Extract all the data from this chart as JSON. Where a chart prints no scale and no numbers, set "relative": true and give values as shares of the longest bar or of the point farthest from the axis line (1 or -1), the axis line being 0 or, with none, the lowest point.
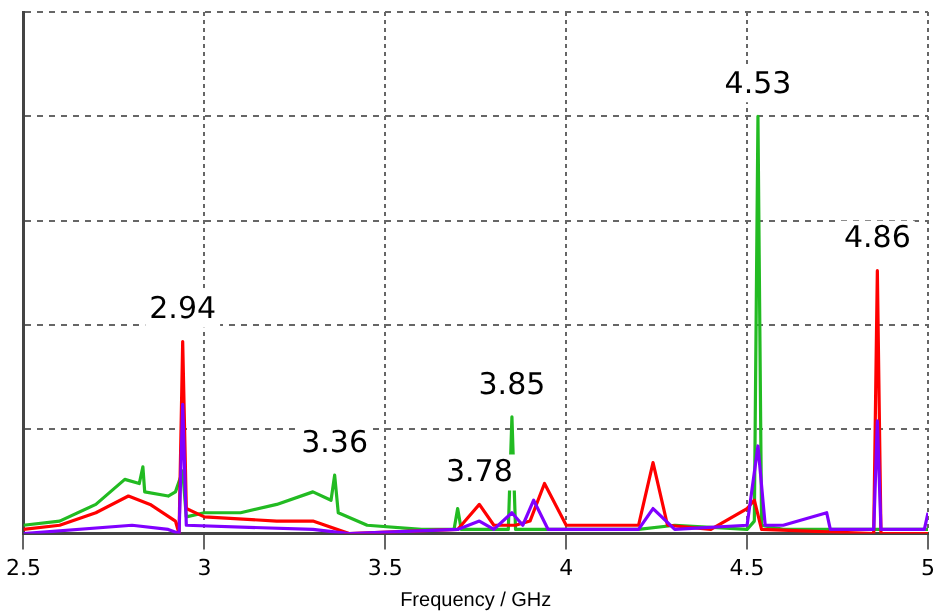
{
  "chart_data": {
    "type": "line",
    "xlabel": "Frequency / GHz",
    "xlim": [
      2.5,
      5
    ],
    "xticks": [
      2.5,
      3,
      3.5,
      4,
      4.5,
      5
    ],
    "relative": true,
    "grid": true,
    "legend": false,
    "marker": "none",
    "line_style": "solid",
    "series": [
      {
        "color": "#22bb22",
        "x": [
          2.5,
          2.6,
          2.7,
          2.78,
          2.82,
          2.83,
          2.835,
          2.9,
          2.92,
          2.94,
          2.95,
          3.0,
          3.1,
          3.2,
          3.3,
          3.35,
          3.36,
          3.37,
          3.45,
          3.6,
          3.69,
          3.7,
          3.71,
          3.84,
          3.85,
          3.86,
          4.0,
          4.2,
          4.3,
          4.5,
          4.52,
          4.53,
          4.54,
          4.6,
          5.0
        ],
        "values": [
          0.02,
          0.03,
          0.07,
          0.13,
          0.12,
          0.16,
          0.1,
          0.09,
          0.1,
          0.15,
          0.04,
          0.05,
          0.05,
          0.07,
          0.1,
          0.08,
          0.14,
          0.05,
          0.02,
          0.01,
          0.01,
          0.06,
          0.01,
          0.01,
          0.28,
          0.01,
          0.01,
          0.01,
          0.02,
          0.01,
          0.03,
          1.0,
          0.02,
          0.01,
          0.01
        ]
      },
      {
        "color": "#ff0000",
        "x": [
          2.5,
          2.6,
          2.7,
          2.79,
          2.85,
          2.92,
          2.93,
          2.94,
          2.95,
          3.0,
          3.2,
          3.3,
          3.4,
          3.7,
          3.76,
          3.8,
          3.85,
          3.86,
          3.9,
          3.94,
          4.0,
          4.2,
          4.24,
          4.28,
          4.4,
          4.5,
          4.52,
          4.54,
          4.85,
          4.86,
          4.87,
          5.0
        ],
        "values": [
          0.01,
          0.02,
          0.05,
          0.09,
          0.07,
          0.03,
          0.0,
          0.46,
          0.06,
          0.04,
          0.03,
          0.03,
          0.0,
          0.01,
          0.07,
          0.02,
          null,
          0.02,
          0.03,
          0.12,
          0.02,
          0.02,
          0.17,
          0.02,
          0.01,
          0.06,
          0.08,
          0.01,
          0.0,
          0.63,
          0.0,
          0.0
        ]
      },
      {
        "color": "#8000ff",
        "x": [
          2.5,
          2.8,
          2.9,
          2.93,
          2.94,
          2.95,
          3.3,
          3.4,
          3.7,
          3.76,
          3.8,
          3.85,
          3.88,
          3.91,
          3.95,
          4.2,
          4.24,
          4.3,
          4.5,
          4.53,
          4.55,
          4.6,
          4.72,
          4.73,
          4.85,
          4.86,
          4.87,
          4.99,
          5.0
        ],
        "values": [
          0,
          0.02,
          0.01,
          0.0,
          0.31,
          0.02,
          0.01,
          0,
          0.01,
          0.03,
          0.01,
          0.05,
          0.02,
          0.08,
          0.01,
          0.01,
          0.06,
          0.01,
          0.02,
          0.21,
          0.02,
          0.02,
          0.05,
          0.01,
          0.01,
          0.27,
          0.01,
          0.01,
          0.05
        ]
      }
    ],
    "annotations": [
      {
        "text": "2.94",
        "x": 2.94,
        "y": 0.46
      },
      {
        "text": "3.36",
        "x": 3.36,
        "y": 0.14
      },
      {
        "text": "3.78",
        "x": 3.76,
        "y": 0.07
      },
      {
        "text": "3.85",
        "x": 3.85,
        "y": 0.28
      },
      {
        "text": "4.53",
        "x": 4.53,
        "y": 1.0
      },
      {
        "text": "4.86",
        "x": 4.86,
        "y": 0.63
      }
    ]
  }
}
